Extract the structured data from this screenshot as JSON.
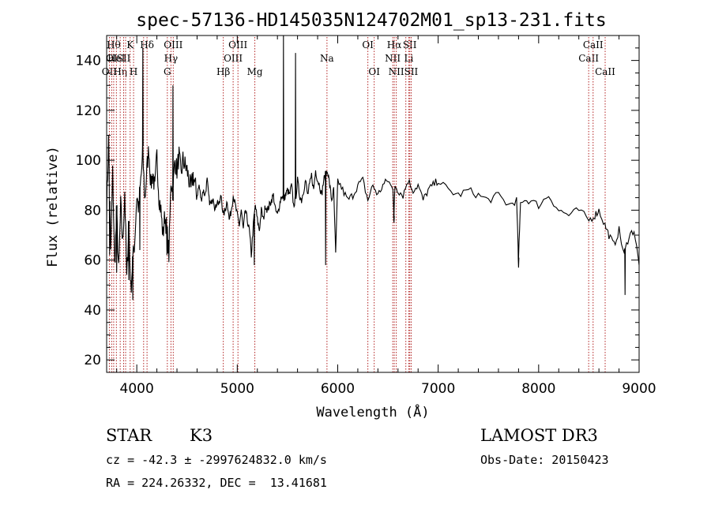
{
  "chart_data": {
    "type": "line",
    "title": "spec-57136-HD145035N124702M01_sp13-231.fits",
    "xlabel": "Wavelength (Å)",
    "ylabel": "Flux (relative)",
    "xlim": [
      3700,
      9000
    ],
    "ylim": [
      15,
      150
    ],
    "x_ticks": [
      4000,
      5000,
      6000,
      7000,
      8000,
      9000
    ],
    "y_ticks": [
      20,
      40,
      60,
      80,
      100,
      120,
      140
    ],
    "grid": false,
    "line_color": "#000000",
    "marker_color": "#b22222",
    "series": [
      {
        "x": [
          3700,
          3720,
          3740,
          3760,
          3780,
          3800,
          3820,
          3840,
          3860,
          3880,
          3900,
          3920,
          3940,
          3960,
          3980,
          4000,
          4020,
          4040,
          4060,
          4080,
          4100,
          4120,
          4140,
          4160,
          4180,
          4200,
          4220,
          4240,
          4260,
          4280,
          4300,
          4320,
          4340,
          4360,
          4380,
          4400,
          4420,
          4440,
          4460,
          4480,
          4500,
          4520,
          4540,
          4560,
          4580,
          4600,
          4620,
          4640,
          4660,
          4680,
          4700,
          4720,
          4740,
          4760,
          4780,
          4800,
          4820,
          4840,
          4860,
          4880,
          4900,
          4920,
          4940,
          4960,
          4980,
          5000,
          5020,
          5040,
          5060,
          5080,
          5100,
          5120,
          5140,
          5160,
          5180,
          5200,
          5220,
          5240,
          5260,
          5280,
          5300,
          5320,
          5340,
          5360,
          5380,
          5400,
          5420,
          5440,
          5460,
          5480,
          5500,
          5520,
          5540,
          5560,
          5580,
          5600,
          5620,
          5640,
          5660,
          5680,
          5700,
          5720,
          5740,
          5760,
          5780,
          5800,
          5820,
          5840,
          5860,
          5880,
          5900,
          5920,
          5940,
          5960,
          5980,
          6000,
          6050,
          6100,
          6150,
          6200,
          6250,
          6300,
          6350,
          6400,
          6450,
          6500,
          6550,
          6560,
          6570,
          6600,
          6650,
          6700,
          6750,
          6800,
          6850,
          6900,
          6950,
          7000,
          7100,
          7200,
          7300,
          7400,
          7500,
          7600,
          7700,
          7780,
          7800,
          7820,
          7900,
          8000,
          8100,
          8200,
          8300,
          8400,
          8500,
          8560,
          8600,
          8660,
          8700,
          8750,
          8800,
          8850,
          8900,
          8950,
          9000
        ],
        "values": [
          80,
          108,
          62,
          95,
          58,
          78,
          55,
          82,
          66,
          88,
          52,
          75,
          48,
          60,
          68,
          86,
          80,
          92,
          102,
          84,
          96,
          105,
          90,
          95,
          88,
          102,
          86,
          80,
          70,
          78,
          72,
          62,
          92,
          88,
          100,
          96,
          102,
          94,
          100,
          98,
          96,
          92,
          88,
          94,
          90,
          86,
          90,
          84,
          88,
          86,
          92,
          84,
          82,
          86,
          80,
          84,
          82,
          86,
          78,
          80,
          84,
          76,
          80,
          86,
          82,
          78,
          74,
          80,
          72,
          80,
          76,
          72,
          62,
          74,
          82,
          76,
          72,
          80,
          76,
          82,
          80,
          82,
          84,
          86,
          80,
          78,
          82,
          86,
          84,
          86,
          88,
          86,
          90,
          82,
          84,
          92,
          86,
          84,
          88,
          92,
          86,
          90,
          94,
          88,
          96,
          92,
          90,
          86,
          92,
          94,
          96,
          90,
          84,
          88,
          62,
          92,
          88,
          84,
          86,
          90,
          92,
          84,
          90,
          86,
          90,
          92,
          88,
          78,
          90,
          88,
          86,
          92,
          88,
          90,
          84,
          88,
          90,
          92,
          88,
          86,
          88,
          86,
          84,
          86,
          82,
          84,
          60,
          84,
          84,
          82,
          86,
          80,
          78,
          80,
          76,
          78,
          80,
          74,
          70,
          66,
          72,
          62,
          70,
          72,
          58
        ]
      }
    ],
    "emission_spikes": [
      {
        "x": 4060,
        "peak": 145
      },
      {
        "x": 4360,
        "peak": 130
      },
      {
        "x": 5460,
        "peak": 150
      },
      {
        "x": 5580,
        "peak": 143
      }
    ],
    "absorption_dips": [
      {
        "x": 3730,
        "min": 62
      },
      {
        "x": 3800,
        "min": 55
      },
      {
        "x": 3920,
        "min": 52
      },
      {
        "x": 3960,
        "min": 44
      },
      {
        "x": 4030,
        "min": 64
      },
      {
        "x": 4300,
        "min": 62
      },
      {
        "x": 5170,
        "min": 58
      },
      {
        "x": 5880,
        "min": 58
      },
      {
        "x": 6560,
        "min": 75
      },
      {
        "x": 7800,
        "min": 57
      },
      {
        "x": 8860,
        "min": 46
      }
    ],
    "line_markers": [
      {
        "x": 3727,
        "label": "OII",
        "row": 3
      },
      {
        "x": 3750,
        "label": "OI",
        "row": 2
      },
      {
        "x": 3770,
        "label": "Hθ",
        "row": 1
      },
      {
        "x": 3797,
        "label": "HeI",
        "row": 2
      },
      {
        "x": 3835,
        "label": "Hη",
        "row": 3
      },
      {
        "x": 3869,
        "label": "SII",
        "row": 2
      },
      {
        "x": 3889,
        "label": "",
        "row": 1
      },
      {
        "x": 3934,
        "label": "K",
        "row": 1
      },
      {
        "x": 3968,
        "label": "H",
        "row": 3
      },
      {
        "x": 4068,
        "label": "",
        "row": 2
      },
      {
        "x": 4102,
        "label": "Hδ",
        "row": 1
      },
      {
        "x": 4304,
        "label": "G",
        "row": 3
      },
      {
        "x": 4340,
        "label": "Hγ",
        "row": 2
      },
      {
        "x": 4363,
        "label": "OIII",
        "row": 1
      },
      {
        "x": 4861,
        "label": "Hβ",
        "row": 3
      },
      {
        "x": 4959,
        "label": "OIII",
        "row": 2
      },
      {
        "x": 5007,
        "label": "OIII",
        "row": 1
      },
      {
        "x": 5175,
        "label": "Mg",
        "row": 3
      },
      {
        "x": 5893,
        "label": "Na",
        "row": 2
      },
      {
        "x": 6300,
        "label": "OI",
        "row": 1
      },
      {
        "x": 6363,
        "label": "OI",
        "row": 3
      },
      {
        "x": 6548,
        "label": "NII",
        "row": 2
      },
      {
        "x": 6563,
        "label": "Hα",
        "row": 1
      },
      {
        "x": 6583,
        "label": "NII",
        "row": 3
      },
      {
        "x": 6678,
        "label": "",
        "row": 2
      },
      {
        "x": 6707,
        "label": "Li",
        "row": 2
      },
      {
        "x": 6717,
        "label": "SII",
        "row": 1
      },
      {
        "x": 6731,
        "label": "SII",
        "row": 3
      },
      {
        "x": 8498,
        "label": "CaII",
        "row": 2
      },
      {
        "x": 8542,
        "label": "CaII",
        "row": 1
      },
      {
        "x": 8662,
        "label": "CaII",
        "row": 3
      }
    ]
  },
  "info": {
    "class_label": "STAR",
    "subclass": "K3",
    "cz_text": "cz = -42.3 ± -2997624832.0 km/s",
    "radec_text": "RA = 224.26332, DEC =  13.41681",
    "survey": "LAMOST DR3",
    "obs_date_text": "Obs-Date: 20150423"
  }
}
